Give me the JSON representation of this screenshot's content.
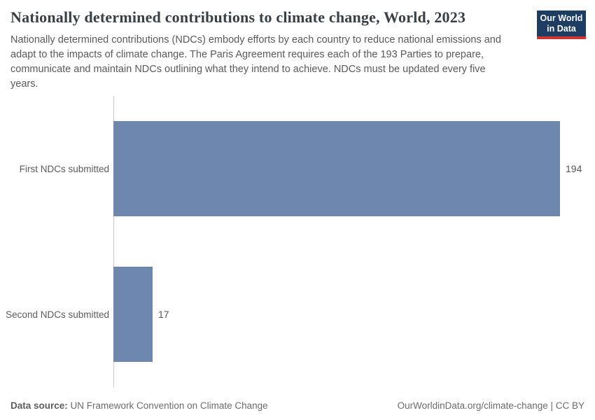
{
  "header": {
    "title": "Nationally determined contributions to climate change, World, 2023",
    "subtitle": "Nationally determined contributions (NDCs) embody efforts by each country to reduce national emissions and adapt to the impacts of climate change. The Paris Agreement requires each of the 193 Parties to prepare, communicate and maintain NDCs outlining what they intend to achieve. NDCs must be updated every five years.",
    "logo": {
      "line1": "Our World",
      "line2": "in Data",
      "bg_color": "#1d3d63",
      "accent_color": "#d0352f"
    }
  },
  "chart_data": {
    "type": "bar",
    "orientation": "horizontal",
    "title": "Nationally determined contributions to climate change, World, 2023",
    "categories": [
      "First NDCs submitted",
      "Second NDCs submitted"
    ],
    "values": [
      194,
      17
    ],
    "value_labels": [
      "194",
      "17"
    ],
    "xlabel": "",
    "ylabel": "",
    "xlim": [
      0,
      194
    ],
    "grid": false,
    "legend": "none",
    "bar_color": "#6e87ae",
    "axis_line_color": "#cccccc"
  },
  "footer": {
    "source_label": "Data source:",
    "source_value": "UN Framework Convention on Climate Change",
    "right_text": "OurWorldinData.org/climate-change | CC BY"
  }
}
